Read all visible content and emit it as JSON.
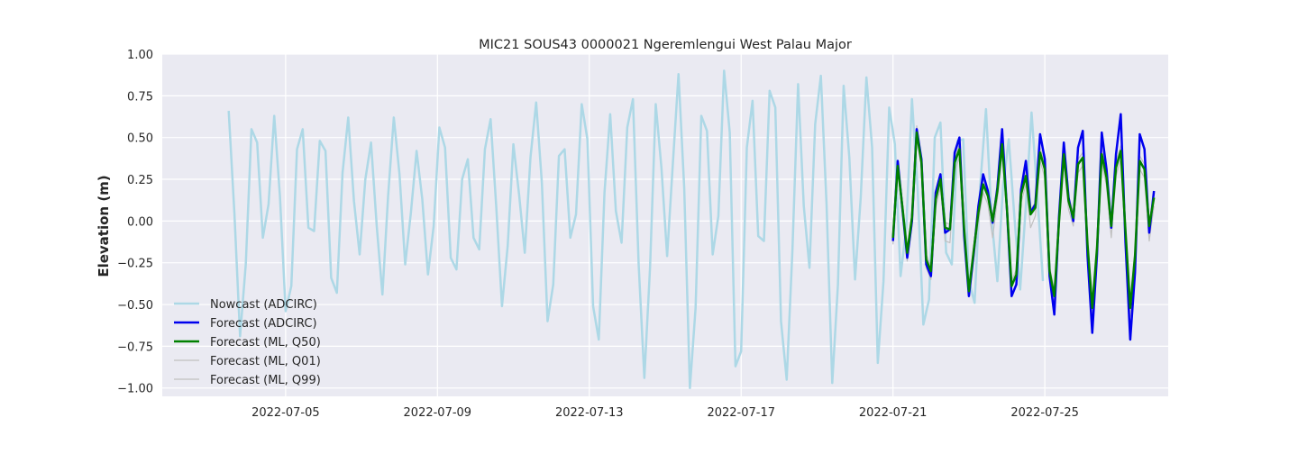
{
  "chart_data": {
    "type": "line",
    "title": "MIC21 SOUS43 0000021 Ngeremlengui West Palau Major",
    "xlabel": "",
    "ylabel": "Elevation (m)",
    "xlim": [
      "2022-07-01T18:00",
      "2022-07-28T06:00"
    ],
    "ylim": [
      -1.05,
      1.0
    ],
    "x_ticks": [
      "2022-07-05",
      "2022-07-09",
      "2022-07-13",
      "2022-07-17",
      "2022-07-21",
      "2022-07-25"
    ],
    "y_ticks": [
      1.0,
      0.75,
      0.5,
      0.25,
      0.0,
      -0.25,
      -0.5,
      -0.75,
      -1.0
    ],
    "y_tick_labels": [
      "1.00",
      "0.75",
      "0.50",
      "0.25",
      "0.00",
      "−0.25",
      "−0.50",
      "−0.75",
      "−1.00"
    ],
    "grid": true,
    "legend_position": "lower-left",
    "background": "#eaeaf2",
    "series": [
      {
        "name": "Nowcast (ADCIRC)",
        "color": "#add8e6",
        "x_start": "2022-07-03T12:00",
        "step_hours": 3.6,
        "values": [
          0.66,
          0.05,
          -0.69,
          -0.26,
          0.55,
          0.47,
          -0.1,
          0.1,
          0.63,
          0.15,
          -0.54,
          -0.39,
          0.43,
          0.55,
          -0.04,
          -0.06,
          0.48,
          0.42,
          -0.34,
          -0.43,
          0.29,
          0.62,
          0.12,
          -0.2,
          0.25,
          0.47,
          -0.03,
          -0.44,
          0.15,
          0.62,
          0.28,
          -0.26,
          0.05,
          0.42,
          0.13,
          -0.32,
          -0.03,
          0.56,
          0.44,
          -0.22,
          -0.29,
          0.25,
          0.37,
          -0.1,
          -0.17,
          0.43,
          0.61,
          0.08,
          -0.51,
          -0.15,
          0.46,
          0.16,
          -0.19,
          0.38,
          0.71,
          0.23,
          -0.6,
          -0.38,
          0.39,
          0.43,
          -0.1,
          0.04,
          0.7,
          0.49,
          -0.51,
          -0.71,
          0.17,
          0.64,
          0.06,
          -0.13,
          0.56,
          0.73,
          -0.26,
          -0.94,
          -0.28,
          0.7,
          0.32,
          -0.21,
          0.34,
          0.88,
          0.2,
          -1.0,
          -0.52,
          0.63,
          0.54,
          -0.2,
          0.03,
          0.9,
          0.53,
          -0.87,
          -0.78,
          0.44,
          0.72,
          -0.09,
          -0.12,
          0.78,
          0.68,
          -0.6,
          -0.95,
          -0.18,
          0.82,
          0.09,
          -0.28,
          0.58,
          0.87,
          0.1,
          -0.97,
          -0.38,
          0.81,
          0.38,
          -0.35,
          0.14,
          0.86,
          0.44,
          -0.85,
          -0.36,
          0.68,
          0.46,
          -0.33,
          -0.04,
          0.73,
          0.19,
          -0.62,
          -0.47,
          0.5,
          0.59,
          -0.19,
          -0.26,
          0.48,
          0.49,
          -0.36,
          -0.49,
          0.22,
          0.67,
          0.01,
          -0.36,
          0.21,
          0.49,
          0.02,
          -0.41,
          0.09,
          0.65,
          0.17,
          -0.36
        ]
      },
      {
        "name": "Forecast (ADCIRC)",
        "color": "#0000ee",
        "x_start": "2022-07-21T00:00",
        "step_hours": 3.0,
        "values": [
          -0.12,
          0.36,
          0.07,
          -0.22,
          0.0,
          0.55,
          0.37,
          -0.26,
          -0.33,
          0.17,
          0.28,
          -0.07,
          -0.05,
          0.41,
          0.5,
          -0.09,
          -0.45,
          -0.2,
          0.09,
          0.28,
          0.18,
          -0.01,
          0.2,
          0.55,
          0.08,
          -0.45,
          -0.38,
          0.19,
          0.36,
          0.05,
          0.1,
          0.52,
          0.37,
          -0.33,
          -0.56,
          0.03,
          0.47,
          0.14,
          0.0,
          0.44,
          0.54,
          -0.21,
          -0.67,
          -0.2,
          0.53,
          0.31,
          -0.04,
          0.4,
          0.64,
          -0.13,
          -0.71,
          -0.31,
          0.52,
          0.43,
          -0.07,
          0.18
        ]
      },
      {
        "name": "Forecast (ML, Q50)",
        "color": "#008000",
        "x_start": "2022-07-21T00:00",
        "step_hours": 3.0,
        "values": [
          -0.1,
          0.33,
          0.08,
          -0.19,
          0.02,
          0.53,
          0.35,
          -0.23,
          -0.3,
          0.13,
          0.25,
          -0.04,
          -0.05,
          0.35,
          0.43,
          -0.05,
          -0.42,
          -0.18,
          0.05,
          0.22,
          0.15,
          0.0,
          0.18,
          0.46,
          0.08,
          -0.39,
          -0.32,
          0.16,
          0.27,
          0.04,
          0.08,
          0.41,
          0.31,
          -0.3,
          -0.45,
          0.0,
          0.4,
          0.12,
          0.02,
          0.34,
          0.38,
          -0.14,
          -0.52,
          -0.16,
          0.4,
          0.26,
          -0.03,
          0.32,
          0.42,
          -0.06,
          -0.52,
          -0.21,
          0.36,
          0.31,
          -0.03,
          0.14
        ]
      },
      {
        "name": "Forecast (ML, Q01)",
        "color": "#c0c0c0",
        "x_start": "2022-07-21T00:00",
        "step_hours": 3.0,
        "values": [
          -0.14,
          0.3,
          0.04,
          -0.24,
          -0.03,
          0.5,
          0.32,
          -0.28,
          -0.35,
          0.08,
          0.2,
          -0.12,
          -0.13,
          0.3,
          0.38,
          -0.1,
          -0.45,
          -0.23,
          0.0,
          0.17,
          0.1,
          -0.1,
          0.13,
          0.41,
          0.03,
          -0.44,
          -0.37,
          0.11,
          0.22,
          -0.04,
          0.03,
          0.36,
          0.26,
          -0.35,
          -0.5,
          -0.05,
          0.35,
          0.07,
          -0.03,
          0.29,
          0.33,
          -0.19,
          -0.57,
          -0.21,
          0.35,
          0.21,
          -0.1,
          0.27,
          0.37,
          -0.11,
          -0.57,
          -0.26,
          0.31,
          0.26,
          -0.12,
          0.09
        ]
      },
      {
        "name": "Forecast (ML, Q99)",
        "color": "#c0c0c0",
        "x_start": "2022-07-21T00:00",
        "step_hours": 3.0,
        "values": [
          -0.07,
          0.36,
          0.11,
          -0.16,
          0.05,
          0.57,
          0.38,
          -0.2,
          -0.27,
          0.16,
          0.28,
          -0.01,
          -0.02,
          0.38,
          0.46,
          -0.02,
          -0.39,
          -0.15,
          0.08,
          0.25,
          0.18,
          0.03,
          0.21,
          0.49,
          0.11,
          -0.36,
          -0.29,
          0.19,
          0.3,
          0.07,
          0.11,
          0.44,
          0.34,
          -0.27,
          -0.42,
          0.03,
          0.43,
          0.15,
          0.05,
          0.37,
          0.41,
          -0.11,
          -0.49,
          -0.13,
          0.43,
          0.29,
          0.0,
          0.35,
          0.45,
          -0.03,
          -0.49,
          -0.18,
          0.39,
          0.34,
          0.0,
          0.17
        ]
      }
    ]
  }
}
